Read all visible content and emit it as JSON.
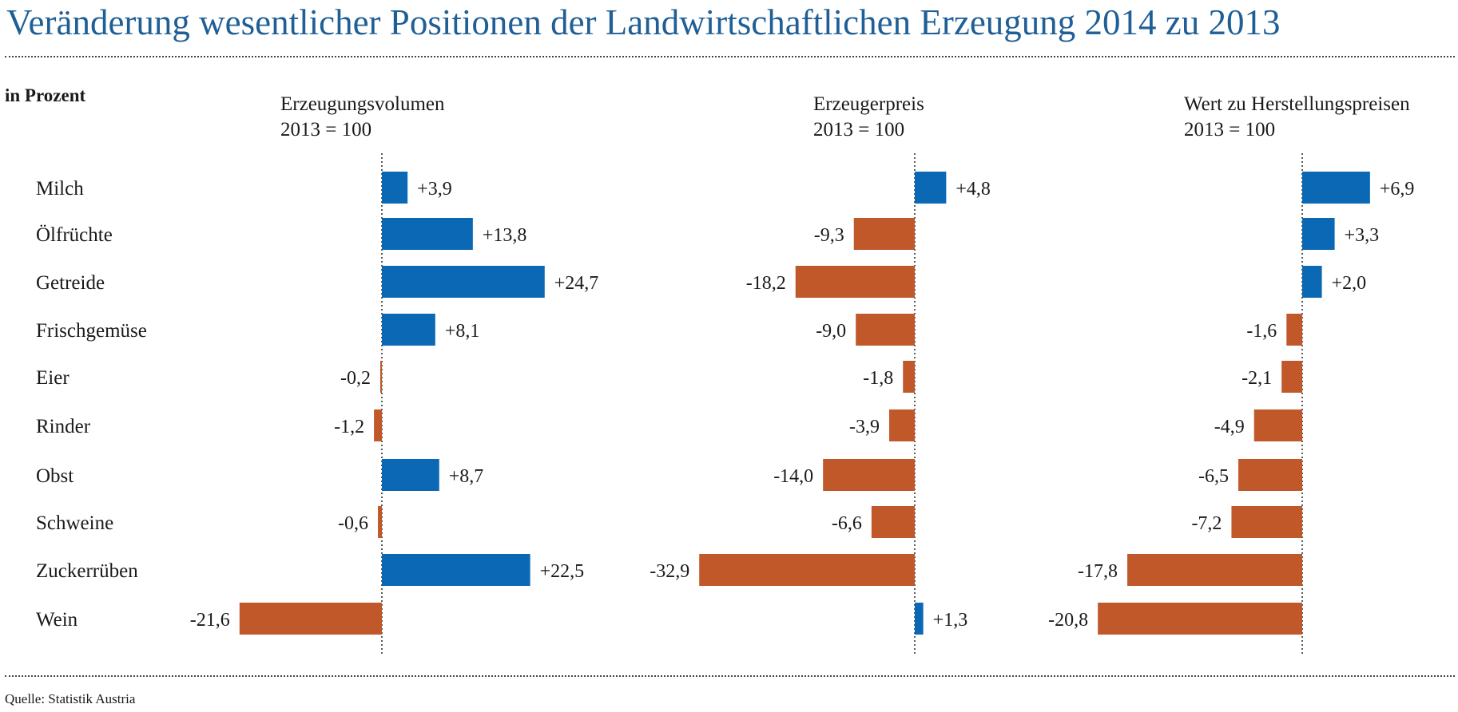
{
  "title": "Veränderung wesentlicher Positionen der Landwirtschaftlichen Erzeugung 2014 zu 2013",
  "unit_label": "in Prozent",
  "source": "Quelle: Statistik Austria",
  "colors": {
    "positive": "#0a68b4",
    "negative": "#c0582a",
    "title": "#1f5f96"
  },
  "chart_data": [
    {
      "type": "bar",
      "orientation": "horizontal",
      "title": "Erzeugungsvolumen",
      "subtitle": "2013 = 100",
      "categories": [
        "Milch",
        "Ölfrüchte",
        "Getreide",
        "Frischgemüse",
        "Eier",
        "Rinder",
        "Obst",
        "Schweine",
        "Zuckerrüben",
        "Wein"
      ],
      "values": [
        3.9,
        13.8,
        24.7,
        8.1,
        -0.2,
        -1.2,
        8.7,
        -0.6,
        22.5,
        -21.6
      ],
      "labels": [
        "+3,9",
        "+13,8",
        "+24,7",
        "+8,1",
        "-0,2",
        "-1,2",
        "+8,7",
        "-0,6",
        "+22,5",
        "-21,6"
      ]
    },
    {
      "type": "bar",
      "orientation": "horizontal",
      "title": "Erzeugerpreis",
      "subtitle": "2013 = 100",
      "categories": [
        "Milch",
        "Ölfrüchte",
        "Getreide",
        "Frischgemüse",
        "Eier",
        "Rinder",
        "Obst",
        "Schweine",
        "Zuckerrüben",
        "Wein"
      ],
      "values": [
        4.8,
        -9.3,
        -18.2,
        -9.0,
        -1.8,
        -3.9,
        -14.0,
        -6.6,
        -32.9,
        1.3
      ],
      "labels": [
        "+4,8",
        "-9,3",
        "-18,2",
        "-9,0",
        "-1,8",
        "-3,9",
        "-14,0",
        "-6,6",
        "-32,9",
        "+1,3"
      ]
    },
    {
      "type": "bar",
      "orientation": "horizontal",
      "title": "Wert zu Herstellungspreisen",
      "subtitle": "2013 = 100",
      "categories": [
        "Milch",
        "Ölfrüchte",
        "Getreide",
        "Frischgemüse",
        "Eier",
        "Rinder",
        "Obst",
        "Schweine",
        "Zuckerrüben",
        "Wein"
      ],
      "values": [
        6.9,
        3.3,
        2.0,
        -1.6,
        -2.1,
        -4.9,
        -6.5,
        -7.2,
        -17.8,
        -20.8
      ],
      "labels": [
        "+6,9",
        "+3,3",
        "+2,0",
        "-1,6",
        "-2,1",
        "-4,9",
        "-6,5",
        "-7,2",
        "-17,8",
        "-20,8"
      ]
    }
  ]
}
